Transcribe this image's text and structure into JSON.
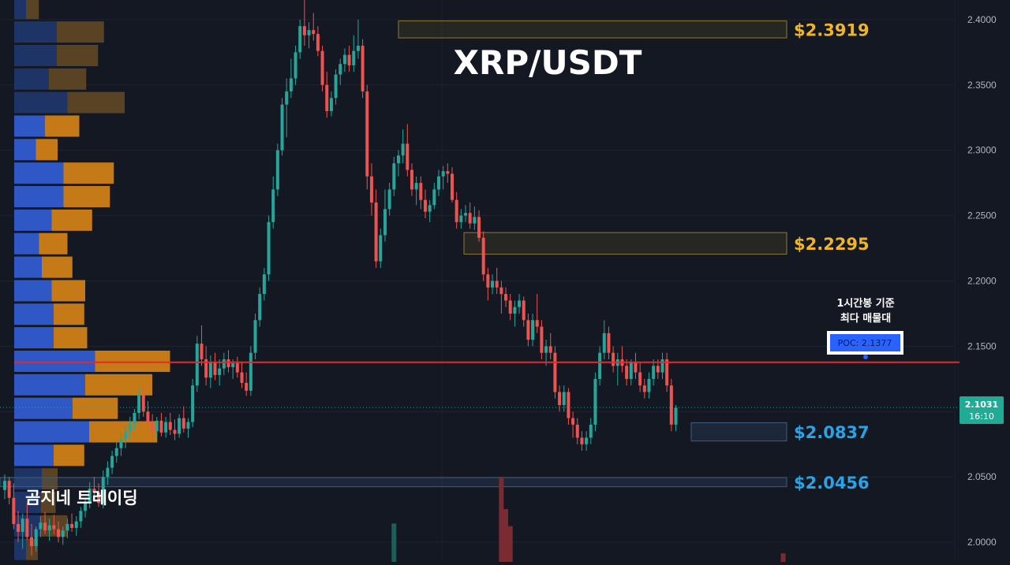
{
  "chart_data": {
    "type": "candlestick",
    "title": "XRP/USDT",
    "watermark": "곰지네 트레이딩",
    "y_axis": {
      "range": [
        1.985,
        2.415
      ],
      "ticks": [
        "2.4000",
        "2.3500",
        "2.3000",
        "2.2500",
        "2.2000",
        "2.1500",
        "2.1000",
        "2.0500",
        "2.0000"
      ]
    },
    "current_price": {
      "price_text": "2.1031",
      "time_text": "16:10",
      "value": 2.1031,
      "color": "#22ab94"
    },
    "poc": {
      "value": 2.1377,
      "label": "POC: 2.1377",
      "note_line1": "1시간봉 기준",
      "note_line2": "최다 매물대",
      "line_color": "#e5282a"
    },
    "levels": [
      {
        "value": 2.3919,
        "label": "$2.3919",
        "color": "#f0b429",
        "zone": [
          2.386,
          2.399
        ]
      },
      {
        "value": 2.2295,
        "label": "$2.2295",
        "color": "#f0b429",
        "zone": [
          2.2205,
          2.237
        ]
      },
      {
        "value": 2.0837,
        "label": "$2.0837",
        "color": "#29a3e6",
        "zone": [
          2.0775,
          2.0915
        ]
      },
      {
        "value": 2.0456,
        "label": "$2.0456",
        "color": "#29a3e6",
        "zone": [
          2.0425,
          2.0495
        ]
      }
    ],
    "volume_profile": [
      {
        "price": 2.4085,
        "buy": 12,
        "sell": 13
      },
      {
        "price": 2.3905,
        "buy": 43,
        "sell": 48
      },
      {
        "price": 2.3725,
        "buy": 43,
        "sell": 42
      },
      {
        "price": 2.3545,
        "buy": 35,
        "sell": 38
      },
      {
        "price": 2.3365,
        "buy": 54,
        "sell": 58
      },
      {
        "price": 2.3185,
        "buy": 31,
        "sell": 35
      },
      {
        "price": 2.3005,
        "buy": 22,
        "sell": 22
      },
      {
        "price": 2.2825,
        "buy": 50,
        "sell": 51
      },
      {
        "price": 2.2645,
        "buy": 50,
        "sell": 47
      },
      {
        "price": 2.2465,
        "buy": 38,
        "sell": 41
      },
      {
        "price": 2.2285,
        "buy": 25,
        "sell": 29
      },
      {
        "price": 2.2105,
        "buy": 28,
        "sell": 31
      },
      {
        "price": 2.1925,
        "buy": 38,
        "sell": 34
      },
      {
        "price": 2.1745,
        "buy": 40,
        "sell": 31
      },
      {
        "price": 2.1565,
        "buy": 40,
        "sell": 34
      },
      {
        "price": 2.1385,
        "buy": 82,
        "sell": 76
      },
      {
        "price": 2.1205,
        "buy": 72,
        "sell": 68
      },
      {
        "price": 2.1025,
        "buy": 59,
        "sell": 46
      },
      {
        "price": 2.0845,
        "buy": 76,
        "sell": 69
      },
      {
        "price": 2.0665,
        "buy": 40,
        "sell": 31
      },
      {
        "price": 2.0485,
        "buy": 28,
        "sell": 16
      },
      {
        "price": 2.0305,
        "buy": 27,
        "sell": 15
      },
      {
        "price": 2.0125,
        "buy": 27,
        "sell": 27
      },
      {
        "price": 1.9945,
        "buy": 12,
        "sell": 12
      }
    ],
    "candles": [
      [
        2.04,
        2.052,
        2.033,
        2.047
      ],
      [
        2.047,
        2.05,
        2.029,
        2.034
      ],
      [
        2.034,
        2.045,
        2.01,
        2.014
      ],
      [
        2.014,
        2.024,
        2.0,
        2.008
      ],
      [
        2.008,
        2.022,
        1.995,
        2.018
      ],
      [
        2.018,
        2.03,
        2.002,
        2.004
      ],
      [
        2.004,
        2.014,
        1.99,
        1.997
      ],
      [
        1.997,
        2.012,
        1.993,
        2.01
      ],
      [
        2.01,
        2.02,
        2.004,
        2.015
      ],
      [
        2.015,
        2.023,
        2.006,
        2.009
      ],
      [
        2.009,
        2.018,
        2.001,
        2.013
      ],
      [
        2.013,
        2.021,
        2.006,
        2.01
      ],
      [
        2.01,
        2.016,
        2.0,
        2.004
      ],
      [
        2.004,
        2.012,
        1.998,
        2.009
      ],
      [
        2.009,
        2.018,
        2.003,
        2.014
      ],
      [
        2.014,
        2.022,
        2.008,
        2.011
      ],
      [
        2.011,
        2.02,
        2.005,
        2.016
      ],
      [
        2.016,
        2.027,
        2.011,
        2.024
      ],
      [
        2.024,
        2.034,
        2.019,
        2.031
      ],
      [
        2.031,
        2.046,
        2.026,
        2.041
      ],
      [
        2.041,
        2.05,
        2.034,
        2.038
      ],
      [
        2.038,
        2.045,
        2.027,
        2.03
      ],
      [
        2.03,
        2.055,
        2.026,
        2.05
      ],
      [
        2.05,
        2.062,
        2.044,
        2.057
      ],
      [
        2.057,
        2.07,
        2.052,
        2.066
      ],
      [
        2.066,
        2.078,
        2.061,
        2.072
      ],
      [
        2.072,
        2.084,
        2.066,
        2.079
      ],
      [
        2.079,
        2.09,
        2.072,
        2.085
      ],
      [
        2.085,
        2.096,
        2.079,
        2.091
      ],
      [
        2.091,
        2.102,
        2.086,
        2.099
      ],
      [
        2.099,
        2.118,
        2.094,
        2.113
      ],
      [
        2.113,
        2.122,
        2.096,
        2.1
      ],
      [
        2.1,
        2.108,
        2.087,
        2.091
      ],
      [
        2.091,
        2.098,
        2.08,
        2.085
      ],
      [
        2.085,
        2.096,
        2.08,
        2.093
      ],
      [
        2.093,
        2.099,
        2.081,
        2.084
      ],
      [
        2.084,
        2.096,
        2.08,
        2.092
      ],
      [
        2.092,
        2.099,
        2.082,
        2.086
      ],
      [
        2.086,
        2.094,
        2.078,
        2.083
      ],
      [
        2.083,
        2.098,
        2.08,
        2.095
      ],
      [
        2.095,
        2.104,
        2.084,
        2.087
      ],
      [
        2.087,
        2.095,
        2.08,
        2.092
      ],
      [
        2.092,
        2.125,
        2.088,
        2.12
      ],
      [
        2.12,
        2.158,
        2.115,
        2.152
      ],
      [
        2.152,
        2.166,
        2.135,
        2.14
      ],
      [
        2.14,
        2.15,
        2.12,
        2.126
      ],
      [
        2.126,
        2.143,
        2.118,
        2.138
      ],
      [
        2.138,
        2.145,
        2.124,
        2.128
      ],
      [
        2.128,
        2.14,
        2.12,
        2.133
      ],
      [
        2.133,
        2.145,
        2.128,
        2.14
      ],
      [
        2.14,
        2.147,
        2.13,
        2.134
      ],
      [
        2.134,
        2.14,
        2.125,
        2.137
      ],
      [
        2.137,
        2.142,
        2.126,
        2.13
      ],
      [
        2.13,
        2.138,
        2.118,
        2.122
      ],
      [
        2.122,
        2.13,
        2.112,
        2.116
      ],
      [
        2.116,
        2.15,
        2.112,
        2.145
      ],
      [
        2.145,
        2.175,
        2.14,
        2.17
      ],
      [
        2.17,
        2.195,
        2.165,
        2.19
      ],
      [
        2.19,
        2.21,
        2.185,
        2.205
      ],
      [
        2.205,
        2.25,
        2.2,
        2.245
      ],
      [
        2.245,
        2.28,
        2.24,
        2.27
      ],
      [
        2.27,
        2.305,
        2.265,
        2.3
      ],
      [
        2.3,
        2.34,
        2.296,
        2.335
      ],
      [
        2.335,
        2.355,
        2.31,
        2.345
      ],
      [
        2.345,
        2.37,
        2.34,
        2.355
      ],
      [
        2.355,
        2.38,
        2.35,
        2.375
      ],
      [
        2.375,
        2.4,
        2.37,
        2.395
      ],
      [
        2.395,
        2.415,
        2.38,
        2.388
      ],
      [
        2.388,
        2.398,
        2.378,
        2.392
      ],
      [
        2.392,
        2.405,
        2.384,
        2.389
      ],
      [
        2.389,
        2.395,
        2.372,
        2.376
      ],
      [
        2.376,
        2.38,
        2.345,
        2.35
      ],
      [
        2.35,
        2.36,
        2.325,
        2.33
      ],
      [
        2.33,
        2.345,
        2.326,
        2.34
      ],
      [
        2.34,
        2.362,
        2.335,
        2.358
      ],
      [
        2.358,
        2.37,
        2.35,
        2.366
      ],
      [
        2.366,
        2.378,
        2.36,
        2.373
      ],
      [
        2.373,
        2.38,
        2.36,
        2.365
      ],
      [
        2.365,
        2.388,
        2.36,
        2.376
      ],
      [
        2.376,
        2.4,
        2.37,
        2.38
      ],
      [
        2.38,
        2.385,
        2.34,
        2.345
      ],
      [
        2.345,
        2.35,
        2.27,
        2.28
      ],
      [
        2.28,
        2.29,
        2.25,
        2.26
      ],
      [
        2.26,
        2.27,
        2.21,
        2.215
      ],
      [
        2.215,
        2.24,
        2.21,
        2.235
      ],
      [
        2.235,
        2.27,
        2.23,
        2.255
      ],
      [
        2.255,
        2.275,
        2.25,
        2.27
      ],
      [
        2.27,
        2.295,
        2.265,
        2.29
      ],
      [
        2.29,
        2.3,
        2.28,
        2.296
      ],
      [
        2.296,
        2.316,
        2.29,
        2.305
      ],
      [
        2.305,
        2.32,
        2.28,
        2.285
      ],
      [
        2.285,
        2.29,
        2.265,
        2.27
      ],
      [
        2.27,
        2.28,
        2.258,
        2.275
      ],
      [
        2.275,
        2.28,
        2.255,
        2.262
      ],
      [
        2.262,
        2.27,
        2.248,
        2.253
      ],
      [
        2.253,
        2.262,
        2.245,
        2.258
      ],
      [
        2.258,
        2.275,
        2.255,
        2.27
      ],
      [
        2.27,
        2.285,
        2.265,
        2.28
      ],
      [
        2.28,
        2.288,
        2.27,
        2.284
      ],
      [
        2.284,
        2.29,
        2.275,
        2.282
      ],
      [
        2.282,
        2.287,
        2.26,
        2.262
      ],
      [
        2.262,
        2.268,
        2.24,
        2.245
      ],
      [
        2.245,
        2.255,
        2.24,
        2.25
      ],
      [
        2.25,
        2.258,
        2.245,
        2.252
      ],
      [
        2.252,
        2.26,
        2.24,
        2.244
      ],
      [
        2.244,
        2.257,
        2.239,
        2.249
      ],
      [
        2.249,
        2.254,
        2.23,
        2.233
      ],
      [
        2.233,
        2.238,
        2.2,
        2.205
      ],
      [
        2.205,
        2.21,
        2.185,
        2.195
      ],
      [
        2.195,
        2.205,
        2.19,
        2.2
      ],
      [
        2.2,
        2.21,
        2.19,
        2.195
      ],
      [
        2.195,
        2.2,
        2.175,
        2.19
      ],
      [
        2.19,
        2.195,
        2.18,
        2.185
      ],
      [
        2.185,
        2.19,
        2.17,
        2.175
      ],
      [
        2.175,
        2.185,
        2.165,
        2.18
      ],
      [
        2.18,
        2.19,
        2.175,
        2.185
      ],
      [
        2.185,
        2.188,
        2.165,
        2.17
      ],
      [
        2.17,
        2.175,
        2.15,
        2.155
      ],
      [
        2.155,
        2.175,
        2.15,
        2.17
      ],
      [
        2.17,
        2.19,
        2.16,
        2.165
      ],
      [
        2.165,
        2.17,
        2.14,
        2.145
      ],
      [
        2.145,
        2.155,
        2.135,
        2.15
      ],
      [
        2.15,
        2.16,
        2.14,
        2.145
      ],
      [
        2.145,
        2.15,
        2.11,
        2.115
      ],
      [
        2.115,
        2.12,
        2.1,
        2.105
      ],
      [
        2.105,
        2.12,
        2.1,
        2.115
      ],
      [
        2.115,
        2.118,
        2.09,
        2.095
      ],
      [
        2.095,
        2.1,
        2.08,
        2.09
      ],
      [
        2.09,
        2.095,
        2.075,
        2.08
      ],
      [
        2.08,
        2.085,
        2.07,
        2.075
      ],
      [
        2.075,
        2.085,
        2.07,
        2.08
      ],
      [
        2.08,
        2.095,
        2.075,
        2.09
      ],
      [
        2.09,
        2.13,
        2.085,
        2.125
      ],
      [
        2.125,
        2.15,
        2.12,
        2.145
      ],
      [
        2.145,
        2.17,
        2.14,
        2.16
      ],
      [
        2.16,
        2.165,
        2.14,
        2.145
      ],
      [
        2.145,
        2.15,
        2.13,
        2.135
      ],
      [
        2.135,
        2.145,
        2.12,
        2.14
      ],
      [
        2.14,
        2.15,
        2.13,
        2.135
      ],
      [
        2.135,
        2.14,
        2.12,
        2.125
      ],
      [
        2.125,
        2.14,
        2.12,
        2.138
      ],
      [
        2.138,
        2.145,
        2.125,
        2.13
      ],
      [
        2.13,
        2.138,
        2.115,
        2.12
      ],
      [
        2.12,
        2.125,
        2.11,
        2.115
      ],
      [
        2.115,
        2.13,
        2.11,
        2.125
      ],
      [
        2.125,
        2.14,
        2.12,
        2.135
      ],
      [
        2.135,
        2.14,
        2.125,
        2.13
      ],
      [
        2.13,
        2.145,
        2.125,
        2.14
      ],
      [
        2.14,
        2.145,
        2.115,
        2.12
      ],
      [
        2.12,
        2.125,
        2.085,
        2.09
      ],
      [
        2.09,
        2.105,
        2.085,
        2.103
      ]
    ],
    "volume_bars": [
      {
        "candle": 87,
        "value": 0.45,
        "color": "#1f5e58"
      },
      {
        "candle": 111,
        "value": 1.0,
        "color": "#7a2b32"
      },
      {
        "candle": 112,
        "value": 0.62,
        "color": "#7a2b32"
      },
      {
        "candle": 113,
        "value": 0.42,
        "color": "#7a2b32"
      },
      {
        "candle": 174,
        "value": 0.1,
        "color": "#7a2b32"
      }
    ],
    "colors": {
      "up": "#26a69a",
      "down": "#ef5350",
      "axis_text": "#b2b5be",
      "background": "#141822",
      "profile_buy": "#2f58c6",
      "profile_sell": "#c57a17",
      "profile_buy_dim": "#1e3466",
      "profile_sell_dim": "#5a4225",
      "gold_label": "#f0b429",
      "blue_label": "#29a3e6"
    }
  }
}
